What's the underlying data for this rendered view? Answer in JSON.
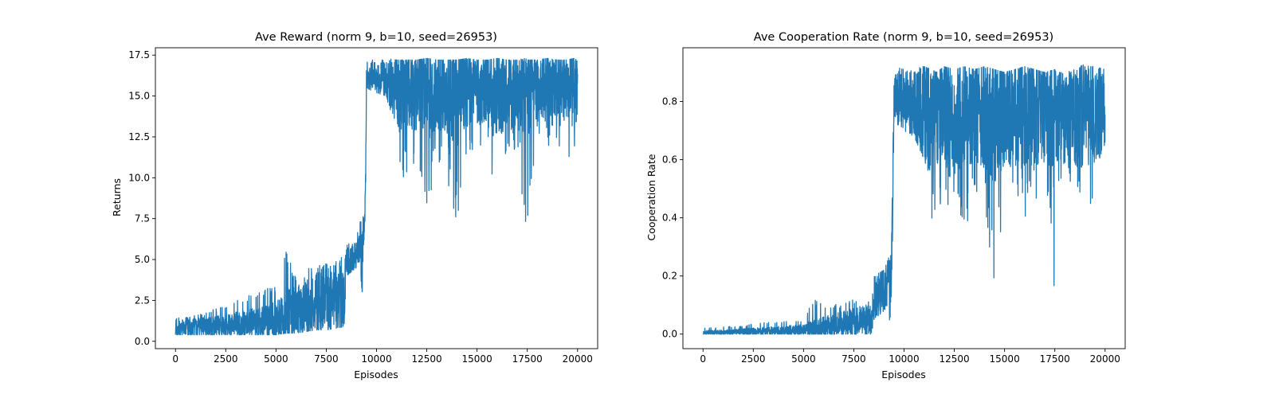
{
  "chart_data": [
    {
      "type": "line",
      "title": "Ave Reward (norm 9, b=10, seed=26953)",
      "xlabel": "Episodes",
      "ylabel": "Returns",
      "xlim": [
        -1000,
        21000
      ],
      "ylim": [
        -0.45,
        17.95
      ],
      "xticks": [
        0,
        2500,
        5000,
        7500,
        10000,
        12500,
        15000,
        17500,
        20000
      ],
      "xtick_labels": [
        "0",
        "2500",
        "5000",
        "7500",
        "10000",
        "12500",
        "15000",
        "17500",
        "20000"
      ],
      "yticks": [
        0,
        2.5,
        5,
        7.5,
        10,
        12.5,
        15,
        17.5
      ],
      "ytick_labels": [
        "0.0",
        "2.5",
        "5.0",
        "7.5",
        "10.0",
        "12.5",
        "15.0",
        "17.5"
      ],
      "grid": false,
      "color": "#1f77b4",
      "series": [
        {
          "x": [
            0,
            1000,
            2000,
            3000,
            4000,
            5000,
            5500,
            6000,
            6500,
            7000,
            7500,
            8000,
            8400,
            8500,
            9000,
            9200,
            9300,
            9350,
            9450,
            9500,
            9800,
            10000,
            10500,
            11000,
            11200,
            11400,
            12000,
            12500,
            13000,
            13500,
            14000,
            14500,
            15000,
            15500,
            16000,
            16500,
            17000,
            17400,
            17500,
            18000,
            18500,
            19000,
            19500,
            19800,
            20000
          ],
          "upper": [
            1.4,
            1.6,
            2.0,
            2.5,
            3.0,
            3.4,
            5.5,
            4.0,
            4.5,
            4.5,
            5.0,
            5.0,
            5.2,
            6.0,
            6.3,
            7.5,
            7.6,
            7.7,
            10.0,
            17.2,
            17.2,
            17.2,
            17.3,
            17.2,
            17.2,
            17.2,
            17.2,
            17.3,
            17.2,
            17.2,
            17.2,
            17.3,
            17.2,
            17.2,
            17.3,
            17.2,
            17.2,
            17.3,
            17.2,
            17.2,
            17.3,
            17.2,
            17.2,
            17.3,
            17.2
          ],
          "lower": [
            0.4,
            0.4,
            0.4,
            0.4,
            0.4,
            0.4,
            0.5,
            0.5,
            0.6,
            0.7,
            0.7,
            0.8,
            0.9,
            4.0,
            4.5,
            5.0,
            1.3,
            5.5,
            8.0,
            15.5,
            15.3,
            15.2,
            15.0,
            12.0,
            8.3,
            10.0,
            10.5,
            7.7,
            11.0,
            10.0,
            7.2,
            11.0,
            11.5,
            12.0,
            7.8,
            11.0,
            12.0,
            6.9,
            7.0,
            12.0,
            12.0,
            11.5,
            12.0,
            8.8,
            14.0
          ],
          "mean": [
            0.8,
            0.85,
            0.9,
            1.0,
            1.1,
            1.3,
            1.6,
            1.8,
            2.0,
            2.2,
            2.4,
            2.5,
            2.6,
            4.8,
            5.2,
            5.8,
            5.5,
            6.0,
            9.0,
            16.0,
            16.0,
            16.0,
            16.0,
            15.5,
            15.3,
            15.5,
            15.3,
            15.2,
            15.4,
            15.2,
            15.0,
            15.3,
            15.3,
            15.4,
            15.2,
            15.3,
            15.4,
            15.0,
            15.2,
            15.4,
            15.4,
            15.4,
            15.5,
            15.4,
            15.6
          ]
        }
      ]
    },
    {
      "type": "line",
      "title": "Ave Cooperation Rate (norm 9, b=10, seed=26953)",
      "xlabel": "Episodes",
      "ylabel": "Cooperation Rate",
      "xlim": [
        -1000,
        21000
      ],
      "ylim": [
        -0.05,
        0.985
      ],
      "xticks": [
        0,
        2500,
        5000,
        7500,
        10000,
        12500,
        15000,
        17500,
        20000
      ],
      "xtick_labels": [
        "0",
        "2500",
        "5000",
        "7500",
        "10000",
        "12500",
        "15000",
        "17500",
        "20000"
      ],
      "yticks": [
        0.0,
        0.2,
        0.4,
        0.6,
        0.8
      ],
      "ytick_labels": [
        "0.0",
        "0.2",
        "0.4",
        "0.6",
        "0.8"
      ],
      "grid": false,
      "color": "#1f77b4",
      "series": [
        {
          "x": [
            0,
            1000,
            2000,
            3000,
            4000,
            5000,
            5500,
            6000,
            6500,
            7000,
            7500,
            8000,
            8400,
            8500,
            9000,
            9200,
            9300,
            9400,
            9500,
            9800,
            10000,
            10500,
            11000,
            11400,
            11600,
            12000,
            12500,
            13000,
            13500,
            14000,
            14500,
            15000,
            15500,
            16000,
            16500,
            17000,
            17500,
            17600,
            18000,
            18500,
            19000,
            19200,
            19500,
            20000
          ],
          "upper": [
            0.02,
            0.025,
            0.03,
            0.04,
            0.045,
            0.05,
            0.12,
            0.1,
            0.1,
            0.11,
            0.12,
            0.1,
            0.12,
            0.2,
            0.22,
            0.27,
            0.25,
            0.4,
            0.91,
            0.92,
            0.91,
            0.92,
            0.92,
            0.91,
            0.9,
            0.92,
            0.91,
            0.92,
            0.91,
            0.92,
            0.91,
            0.9,
            0.91,
            0.92,
            0.91,
            0.9,
            0.91,
            0.9,
            0.9,
            0.91,
            0.93,
            0.92,
            0.92,
            0.91
          ],
          "lower": [
            0.0,
            0.0,
            0.0,
            0.0,
            0.0,
            0.0,
            0.0,
            0.0,
            0.0,
            0.0,
            0.0,
            0.0,
            0.0,
            0.05,
            0.08,
            0.1,
            0.0,
            0.2,
            0.72,
            0.72,
            0.7,
            0.68,
            0.6,
            0.32,
            0.43,
            0.4,
            0.48,
            0.29,
            0.4,
            0.45,
            0.13,
            0.5,
            0.52,
            0.34,
            0.45,
            0.48,
            0.12,
            0.52,
            0.55,
            0.5,
            0.45,
            0.34,
            0.52,
            0.65
          ],
          "mean": [
            0.005,
            0.006,
            0.008,
            0.01,
            0.012,
            0.015,
            0.02,
            0.025,
            0.03,
            0.035,
            0.04,
            0.045,
            0.05,
            0.12,
            0.15,
            0.18,
            0.15,
            0.3,
            0.8,
            0.8,
            0.78,
            0.77,
            0.76,
            0.75,
            0.76,
            0.77,
            0.76,
            0.77,
            0.76,
            0.77,
            0.75,
            0.76,
            0.76,
            0.77,
            0.76,
            0.76,
            0.74,
            0.76,
            0.76,
            0.76,
            0.77,
            0.76,
            0.76,
            0.78
          ]
        }
      ]
    }
  ]
}
